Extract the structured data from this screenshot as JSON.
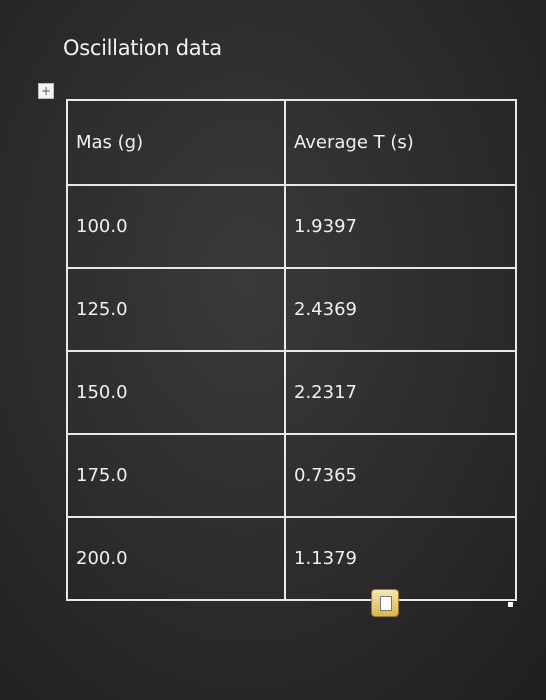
{
  "title": "Oscillation data",
  "table": {
    "header": [
      "Mas (g)",
      "Average T (s)"
    ],
    "rows": [
      [
        "100.0",
        "1.9397"
      ],
      [
        "125.0",
        "2.4369"
      ],
      [
        "150.0",
        "2.2317"
      ],
      [
        "175.0",
        "0.7365"
      ],
      [
        "200.0",
        "1.1379"
      ]
    ]
  }
}
